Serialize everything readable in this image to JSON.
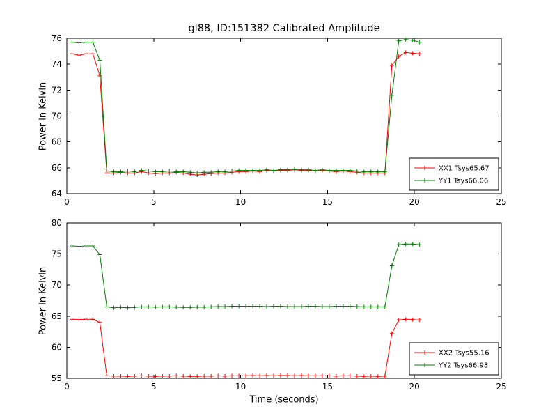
{
  "colors": {
    "red": "#ff0000",
    "green": "#008000",
    "axis": "#000000",
    "background": "#ffffff"
  },
  "chart_data": [
    {
      "type": "line",
      "title": "gl88, ID:151382 Calibrated Amplitude",
      "xlabel": "",
      "ylabel": "Power in Kelvin",
      "xlim": [
        0,
        25
      ],
      "ylim": [
        64,
        76
      ],
      "xticks": [
        0,
        5,
        10,
        15,
        20,
        25
      ],
      "yticks": [
        64,
        66,
        68,
        70,
        72,
        74,
        76
      ],
      "grid": false,
      "legend_position": "lower right",
      "x": [
        0.3,
        0.7,
        1.1,
        1.5,
        1.9,
        2.3,
        2.7,
        3.1,
        3.5,
        3.9,
        4.3,
        4.7,
        5.1,
        5.5,
        5.9,
        6.3,
        6.7,
        7.1,
        7.5,
        7.9,
        8.3,
        8.7,
        9.1,
        9.5,
        9.9,
        10.3,
        10.7,
        11.1,
        11.5,
        11.9,
        12.3,
        12.7,
        13.1,
        13.5,
        13.9,
        14.3,
        14.7,
        15.1,
        15.5,
        15.9,
        16.3,
        16.7,
        17.1,
        17.5,
        17.9,
        18.3,
        18.7,
        19.1,
        19.5,
        19.9,
        20.3
      ],
      "series": [
        {
          "name": "XX1 Tsys65.67",
          "color": "#ff0000",
          "marker": "plus",
          "values": [
            74.8,
            74.7,
            74.8,
            74.8,
            73.1,
            65.6,
            65.6,
            65.65,
            65.6,
            65.6,
            65.7,
            65.6,
            65.55,
            65.6,
            65.6,
            65.65,
            65.6,
            65.5,
            65.45,
            65.5,
            65.55,
            65.6,
            65.6,
            65.65,
            65.7,
            65.7,
            65.75,
            65.7,
            65.8,
            65.75,
            65.8,
            65.8,
            65.85,
            65.8,
            65.8,
            65.75,
            65.8,
            65.75,
            65.7,
            65.75,
            65.7,
            65.65,
            65.6,
            65.6,
            65.6,
            65.6,
            73.9,
            74.6,
            74.9,
            74.85,
            74.8
          ]
        },
        {
          "name": "YY1 Tsys66.06",
          "color": "#008000",
          "marker": "plus",
          "values": [
            75.7,
            75.65,
            75.7,
            75.7,
            74.3,
            65.75,
            65.7,
            65.7,
            65.75,
            65.7,
            65.8,
            65.75,
            65.7,
            65.7,
            65.75,
            65.7,
            65.7,
            65.65,
            65.6,
            65.65,
            65.65,
            65.7,
            65.7,
            65.75,
            65.8,
            65.8,
            65.8,
            65.8,
            65.85,
            65.8,
            65.85,
            65.85,
            65.9,
            65.85,
            65.85,
            65.8,
            65.85,
            65.8,
            65.8,
            65.8,
            65.8,
            65.75,
            65.7,
            65.7,
            65.7,
            65.7,
            71.6,
            75.8,
            75.9,
            75.85,
            75.7
          ]
        }
      ]
    },
    {
      "type": "line",
      "title": "",
      "xlabel": "Time (seconds)",
      "ylabel": "Power in Kelvin",
      "xlim": [
        0,
        25
      ],
      "ylim": [
        55,
        80
      ],
      "xticks": [
        0,
        5,
        10,
        15,
        20,
        25
      ],
      "yticks": [
        55,
        60,
        65,
        70,
        75,
        80
      ],
      "grid": false,
      "legend_position": "lower right",
      "x": [
        0.3,
        0.7,
        1.1,
        1.5,
        1.9,
        2.3,
        2.7,
        3.1,
        3.5,
        3.9,
        4.3,
        4.7,
        5.1,
        5.5,
        5.9,
        6.3,
        6.7,
        7.1,
        7.5,
        7.9,
        8.3,
        8.7,
        9.1,
        9.5,
        9.9,
        10.3,
        10.7,
        11.1,
        11.5,
        11.9,
        12.3,
        12.7,
        13.1,
        13.5,
        13.9,
        14.3,
        14.7,
        15.1,
        15.5,
        15.9,
        16.3,
        16.7,
        17.1,
        17.5,
        17.9,
        18.3,
        18.7,
        19.1,
        19.5,
        19.9,
        20.3
      ],
      "series": [
        {
          "name": "XX2 Tsys55.16",
          "color": "#ff0000",
          "marker": "plus",
          "values": [
            64.5,
            64.45,
            64.5,
            64.5,
            64.0,
            55.4,
            55.35,
            55.35,
            55.3,
            55.35,
            55.4,
            55.35,
            55.3,
            55.35,
            55.35,
            55.4,
            55.35,
            55.3,
            55.3,
            55.35,
            55.35,
            55.4,
            55.35,
            55.4,
            55.4,
            55.4,
            55.45,
            55.4,
            55.45,
            55.4,
            55.45,
            55.45,
            55.4,
            55.45,
            55.4,
            55.4,
            55.4,
            55.4,
            55.35,
            55.4,
            55.4,
            55.35,
            55.3,
            55.35,
            55.3,
            55.35,
            62.2,
            64.4,
            64.5,
            64.45,
            64.4
          ]
        },
        {
          "name": "YY2 Tsys66.93",
          "color": "#008000",
          "marker": "plus",
          "values": [
            76.3,
            76.25,
            76.3,
            76.3,
            74.9,
            66.5,
            66.35,
            66.4,
            66.35,
            66.4,
            66.5,
            66.5,
            66.45,
            66.5,
            66.5,
            66.45,
            66.4,
            66.4,
            66.45,
            66.45,
            66.5,
            66.55,
            66.55,
            66.6,
            66.6,
            66.6,
            66.6,
            66.6,
            66.55,
            66.6,
            66.6,
            66.55,
            66.55,
            66.55,
            66.6,
            66.6,
            66.55,
            66.55,
            66.6,
            66.6,
            66.6,
            66.55,
            66.5,
            66.5,
            66.5,
            66.5,
            73.1,
            76.5,
            76.6,
            76.6,
            76.5
          ]
        }
      ]
    }
  ]
}
